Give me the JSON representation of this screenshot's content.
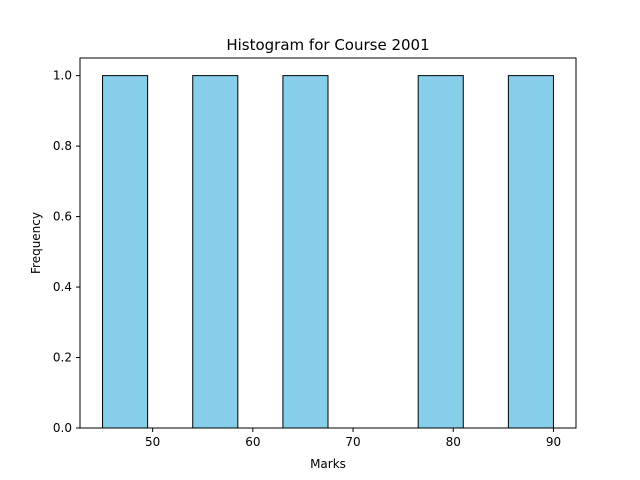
{
  "chart_data": {
    "type": "bar",
    "title": "Histogram for Course 2001",
    "xlabel": "Marks",
    "ylabel": "Frequency",
    "bins": [
      {
        "x0": 45,
        "x1": 49.5,
        "count": 1
      },
      {
        "x0": 49.5,
        "x1": 54,
        "count": 0
      },
      {
        "x0": 54,
        "x1": 58.5,
        "count": 1
      },
      {
        "x0": 58.5,
        "x1": 63,
        "count": 0
      },
      {
        "x0": 63,
        "x1": 67.5,
        "count": 1
      },
      {
        "x0": 67.5,
        "x1": 72,
        "count": 0
      },
      {
        "x0": 72,
        "x1": 76.5,
        "count": 0
      },
      {
        "x0": 76.5,
        "x1": 81,
        "count": 1
      },
      {
        "x0": 81,
        "x1": 85.5,
        "count": 0
      },
      {
        "x0": 85.5,
        "x1": 90,
        "count": 1
      }
    ],
    "xlim": [
      42.75,
      92.25
    ],
    "ylim": [
      0,
      1.05
    ],
    "xticks": [
      50,
      60,
      70,
      80,
      90
    ],
    "yticks": [
      "0.0",
      "0.2",
      "0.4",
      "0.6",
      "0.8",
      "1.0"
    ],
    "bar_color": "#87ceeb",
    "edge_color": "#000000",
    "grid": false
  }
}
